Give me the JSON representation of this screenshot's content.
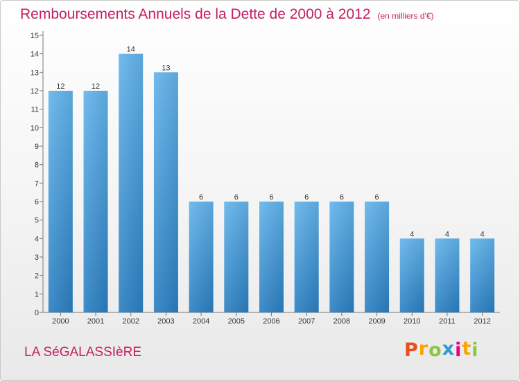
{
  "title": "Remboursements Annuels de la Dette de 2000 à 2012",
  "units": "(en milliers d'€)",
  "commune": "LA SéGALASSIèRE",
  "logo": {
    "letters": [
      "P",
      "r",
      "o",
      "x",
      "i",
      "t",
      "i"
    ],
    "colors": [
      "#e94e1b",
      "#f7a600",
      "#8cc63f",
      "#2e9ad0",
      "#e6007e",
      "#f7a600",
      "#8cc63f"
    ]
  },
  "colors": {
    "bar_top": "#63b4ec",
    "bar_bottom": "#2a7fc2",
    "accent": "#c41e63"
  },
  "chart_data": {
    "type": "bar",
    "categories": [
      "2000",
      "2001",
      "2002",
      "2003",
      "2004",
      "2005",
      "2006",
      "2007",
      "2008",
      "2009",
      "2010",
      "2011",
      "2012"
    ],
    "values": [
      12,
      12,
      14,
      13,
      6,
      6,
      6,
      6,
      6,
      6,
      4,
      4,
      4
    ],
    "data_labels": [
      "12",
      "12",
      "14",
      "13",
      "6",
      "6",
      "6",
      "6",
      "6",
      "6",
      "4",
      "4",
      "4"
    ],
    "yticks": [
      "0",
      "1",
      "2",
      "3",
      "4",
      "5",
      "6",
      "7",
      "8",
      "9",
      "10",
      "11",
      "12",
      "13",
      "14",
      "15"
    ],
    "ylim": [
      0,
      15
    ],
    "grid": false,
    "legend": "none"
  }
}
